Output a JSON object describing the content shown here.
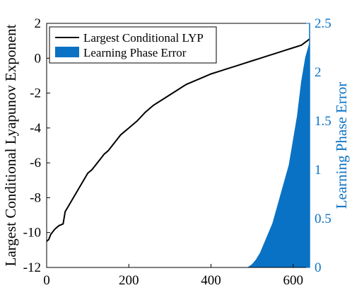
{
  "chart_data": {
    "type": "line",
    "xlabel": "",
    "ylabel_left": "Largest Conditional Lyapunov Exponent",
    "ylabel_right": "Learning Phase Error",
    "xlim": [
      0,
      640
    ],
    "ylim_left": [
      -12,
      2
    ],
    "ylim_right": [
      0,
      2.5
    ],
    "x_ticks": [
      "0",
      "200",
      "400",
      "600"
    ],
    "y_left_ticks": [
      "-12",
      "-10",
      "-8",
      "-6",
      "-4",
      "-2",
      "0",
      "2"
    ],
    "y_right_ticks": [
      "0",
      "0.5",
      "1",
      "1.5",
      "2",
      "2.5"
    ],
    "grid": false,
    "legend_position": "top-left",
    "series": [
      {
        "name": "Largest Conditional LYP",
        "axis": "left",
        "style": "line",
        "color": "#000000",
        "x": [
          0,
          5,
          10,
          20,
          30,
          40,
          45,
          50,
          60,
          70,
          80,
          90,
          100,
          110,
          120,
          130,
          140,
          150,
          160,
          170,
          180,
          190,
          200,
          220,
          240,
          260,
          280,
          300,
          320,
          340,
          360,
          380,
          400,
          420,
          440,
          460,
          480,
          500,
          520,
          540,
          560,
          580,
          600,
          620,
          640
        ],
        "y": [
          -10.5,
          -10.4,
          -10.1,
          -9.8,
          -9.6,
          -9.5,
          -8.8,
          -8.6,
          -8.2,
          -7.8,
          -7.4,
          -7.0,
          -6.6,
          -6.4,
          -6.1,
          -5.8,
          -5.5,
          -5.3,
          -5.0,
          -4.7,
          -4.4,
          -4.2,
          -4.0,
          -3.6,
          -3.1,
          -2.7,
          -2.4,
          -2.1,
          -1.8,
          -1.5,
          -1.3,
          -1.1,
          -0.9,
          -0.75,
          -0.6,
          -0.45,
          -0.3,
          -0.15,
          0.0,
          0.15,
          0.3,
          0.45,
          0.6,
          0.75,
          1.1
        ]
      },
      {
        "name": "Learning Phase Error",
        "axis": "right",
        "style": "filled-area",
        "color": "#0a72c4",
        "x": [
          0,
          490,
          500,
          510,
          520,
          530,
          540,
          550,
          560,
          570,
          580,
          590,
          600,
          610,
          620,
          630,
          640
        ],
        "y": [
          0,
          0,
          0.03,
          0.08,
          0.15,
          0.25,
          0.35,
          0.45,
          0.6,
          0.75,
          0.9,
          1.05,
          1.3,
          1.55,
          1.9,
          2.15,
          2.3
        ]
      }
    ]
  }
}
